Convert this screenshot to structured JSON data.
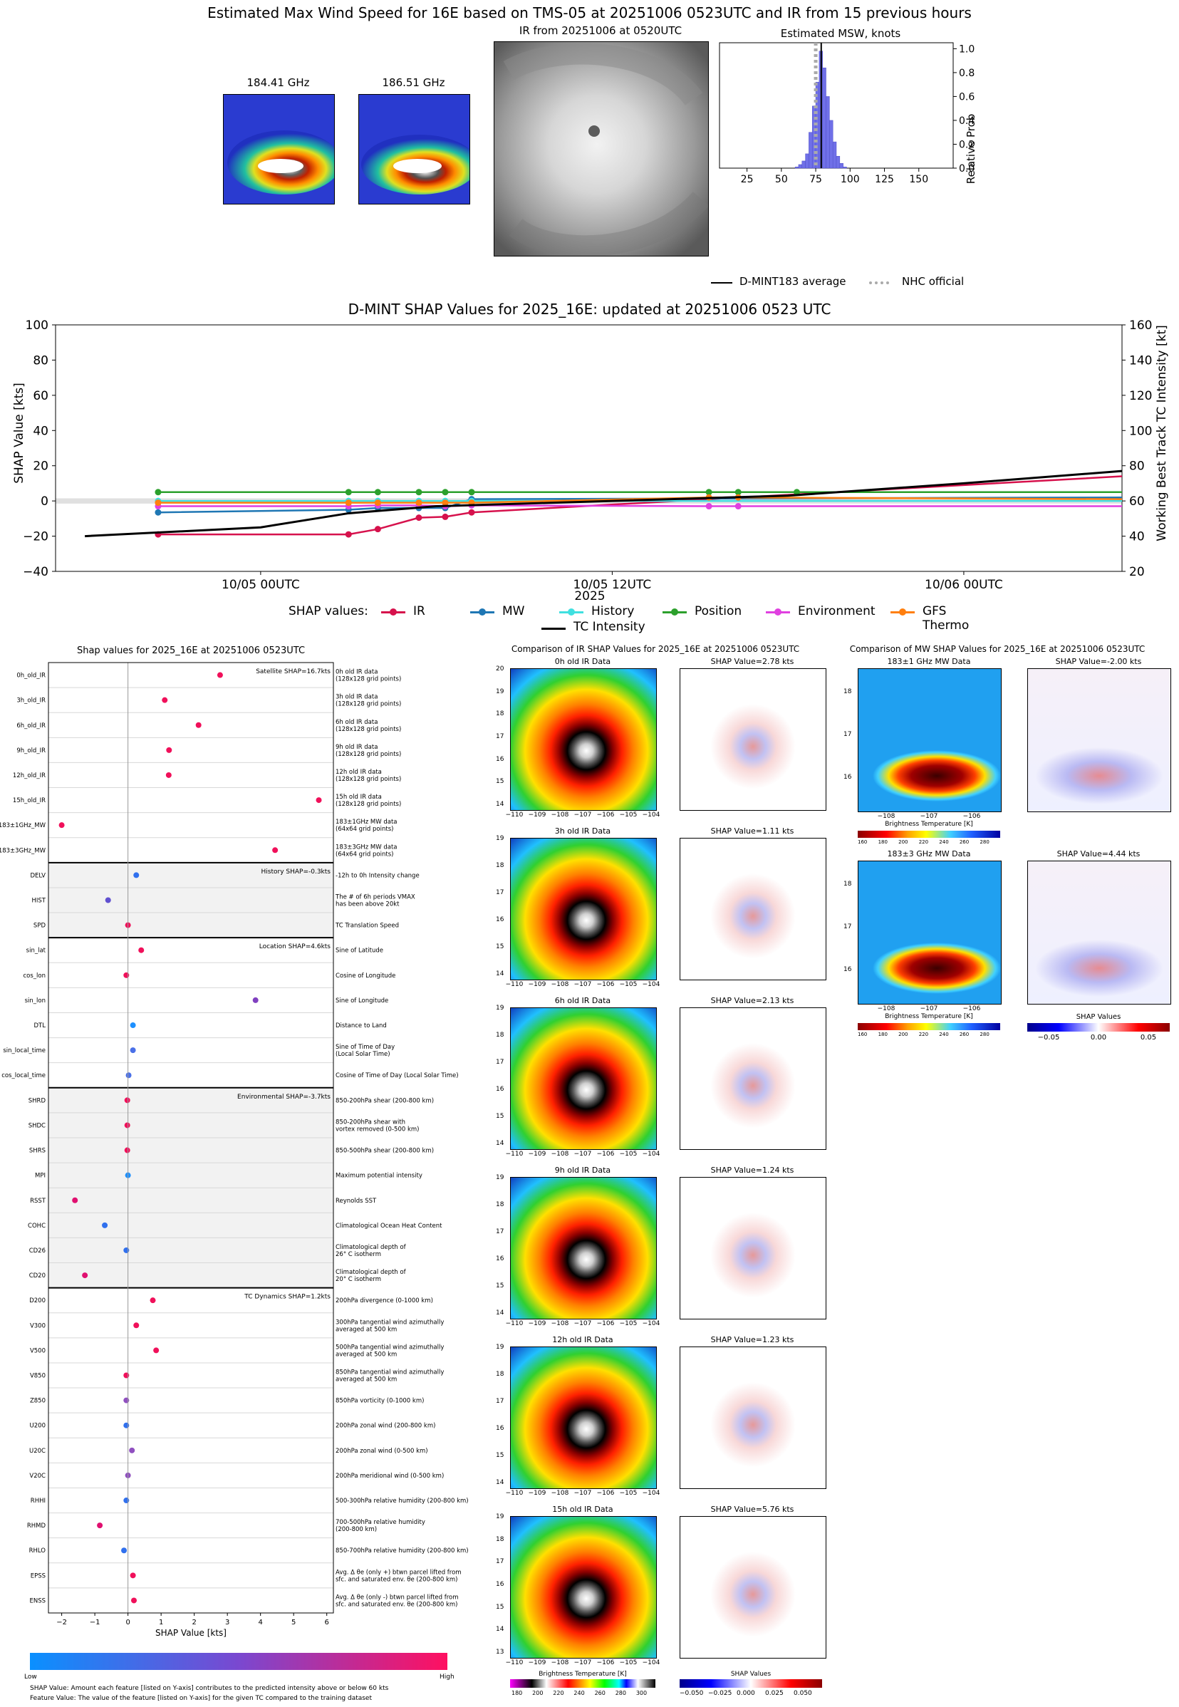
{
  "header": {
    "title": "Estimated Max Wind Speed for 16E based on TMS-05 at 20251006 0523UTC and IR from 15 previous hours",
    "mw1_label": "184.41 GHz",
    "mw2_label": "186.51 GHz",
    "ir_label": "IR from 20251006 at 0520UTC",
    "hist_title": "Estimated MSW, knots",
    "hist_ylabel": "Relative Prob",
    "hist_xticks": [
      "25",
      "50",
      "75",
      "100",
      "125",
      "150"
    ],
    "hist_yticks": [
      "0.0",
      "0.2",
      "0.4",
      "0.6",
      "0.8",
      "1.0"
    ],
    "legend_avg": "D-MINT183 average",
    "legend_nhc": "NHC official"
  },
  "timeline": {
    "title": "D-MINT SHAP Values for 2025_16E: updated at 20251006 0523 UTC",
    "ylabel_left": "SHAP Value [kts]",
    "ylabel_right": "Working Best Track TC Intensity [kt]",
    "xlabel": "2025",
    "legend_title": "SHAP values:",
    "tc_label": "TC Intensity"
  },
  "shap_panel": {
    "title": "Shap values for 2025_16E at 20251006 0523UTC",
    "xlabel": "SHAP Value [kts]",
    "cb_low": "Low",
    "cb_high": "High",
    "footnote1": "SHAP Value: Amount each feature [listed on Y-axis] contributes to the predicted intensity above or below 60 kts",
    "footnote2": "Feature Value: The value of the feature [listed on Y-axis] for the given TC compared to the training dataset",
    "xticks": [
      "−2",
      "−1",
      "0",
      "1",
      "2",
      "3",
      "4",
      "5",
      "6"
    ]
  },
  "ir_comparison": {
    "title": "Comparison of IR SHAP Values for 2025_16E at 20251006 0523UTC",
    "panels": [
      {
        "data_title": "0h old IR Data",
        "shap_title": "SHAP Value=2.78 kts"
      },
      {
        "data_title": "3h old IR Data",
        "shap_title": "SHAP Value=1.11 kts"
      },
      {
        "data_title": "6h old IR Data",
        "shap_title": "SHAP Value=2.13 kts"
      },
      {
        "data_title": "9h old IR Data",
        "shap_title": "SHAP Value=1.24 kts"
      },
      {
        "data_title": "12h old IR Data",
        "shap_title": "SHAP Value=1.23 kts"
      },
      {
        "data_title": "15h old IR Data",
        "shap_title": "SHAP Value=5.76 kts"
      }
    ],
    "xticks": [
      "−110",
      "−109",
      "−108",
      "−107",
      "−106",
      "−105",
      "−104"
    ],
    "cb_label": "Brightness Temperature [K]",
    "cb_ticks": [
      "180",
      "200",
      "220",
      "240",
      "260",
      "280",
      "300"
    ],
    "shap_cb_label": "SHAP Values",
    "shap_cb_ticks": [
      "−0.050",
      "−0.025",
      "0.000",
      "0.025",
      "0.050"
    ]
  },
  "mw_comparison": {
    "title": "Comparison of MW SHAP Values for 2025_16E at 20251006 0523UTC",
    "panels": [
      {
        "data_title": "183±1 GHz MW Data",
        "shap_title": "SHAP Value=-2.00 kts"
      },
      {
        "data_title": "183±3 GHz MW Data",
        "shap_title": "SHAP Value=4.44 kts"
      }
    ],
    "xticks": [
      "−108",
      "−107",
      "−106"
    ],
    "yticks": [
      "18",
      "17",
      "16"
    ],
    "cb_label": "Brightness Temperature [K]",
    "cb_ticks": [
      "160",
      "180",
      "200",
      "220",
      "240",
      "260",
      "280"
    ],
    "shap_cb_label": "SHAP Values",
    "shap_cb_ticks": [
      "−0.05",
      "0.00",
      "0.05"
    ]
  },
  "chart_data": [
    {
      "type": "bar",
      "title": "Estimated MSW, knots",
      "ylabel": "Relative Prob",
      "xlim": [
        5,
        175
      ],
      "ylim": [
        0,
        1.05
      ],
      "bin_width": 2.5,
      "bins": [
        60,
        62.5,
        65,
        67.5,
        70,
        72.5,
        75,
        77.5,
        80,
        82.5,
        85,
        87.5,
        90,
        92.5,
        95
      ],
      "values": [
        0.01,
        0.03,
        0.06,
        0.12,
        0.3,
        0.52,
        0.72,
        0.98,
        0.84,
        0.6,
        0.4,
        0.22,
        0.1,
        0.04,
        0.01
      ],
      "avg": 79,
      "nhc": 75,
      "legend": [
        "D-MINT183 average",
        "NHC official"
      ]
    },
    {
      "type": "line",
      "title": "D-MINT SHAP Values for 2025_16E: updated at 20251006 0523 UTC",
      "xlabel": "2025",
      "ylabel": "SHAP Value [kts]",
      "y2label": "Working Best Track TC Intensity [kt]",
      "xticks": [
        {
          "hours": 0,
          "label": "10/05 00UTC"
        },
        {
          "hours": 12,
          "label": "10/05 12UTC"
        },
        {
          "hours": 24,
          "label": "10/06 00UTC"
        }
      ],
      "xlim_hours": [
        -7,
        29.4
      ],
      "ylim": [
        -40,
        100
      ],
      "y2lim": [
        20,
        160
      ],
      "series": [
        {
          "name": "IR",
          "color": "#d6114c",
          "points": [
            [
              -3.5,
              -19
            ],
            [
              3,
              -19
            ],
            [
              4,
              -16
            ],
            [
              5.4,
              -9.5
            ],
            [
              6.3,
              -9
            ],
            [
              7.2,
              -6.5
            ],
            [
              29.4,
              14
            ]
          ]
        },
        {
          "name": "MW",
          "color": "#1f77b4",
          "points": [
            [
              -3.5,
              -6.5
            ],
            [
              3,
              -5
            ],
            [
              4,
              -4
            ],
            [
              5.4,
              -4
            ],
            [
              6.3,
              -4
            ],
            [
              7.2,
              1
            ],
            [
              29.4,
              2
            ]
          ]
        },
        {
          "name": "History",
          "color": "#40e0e0",
          "points": [
            [
              -3.5,
              0
            ],
            [
              3,
              0
            ],
            [
              4,
              0
            ],
            [
              5.4,
              0
            ],
            [
              6.3,
              0
            ],
            [
              7.2,
              0
            ],
            [
              29.4,
              0
            ]
          ]
        },
        {
          "name": "Position",
          "color": "#2ca02c",
          "points": [
            [
              -3.5,
              5
            ],
            [
              3,
              5
            ],
            [
              4,
              5
            ],
            [
              5.4,
              5
            ],
            [
              6.3,
              5
            ],
            [
              7.2,
              5
            ],
            [
              15.3,
              5
            ],
            [
              16.3,
              5
            ],
            [
              18.3,
              5
            ],
            [
              29.4,
              5
            ]
          ]
        },
        {
          "name": "Environment",
          "color": "#e040e0",
          "points": [
            [
              -3.5,
              -3
            ],
            [
              3,
              -3
            ],
            [
              4,
              -2.5
            ],
            [
              5.4,
              -2.5
            ],
            [
              6.3,
              -3
            ],
            [
              7.2,
              -2.5
            ],
            [
              15.3,
              -3
            ],
            [
              16.3,
              -3
            ],
            [
              29.4,
              -3
            ]
          ]
        },
        {
          "name": "GFS Thermo",
          "color": "#ff7f0e",
          "points": [
            [
              -3.5,
              -1
            ],
            [
              3,
              -1
            ],
            [
              4,
              -1
            ],
            [
              5.4,
              -1
            ],
            [
              6.3,
              -1
            ],
            [
              7.2,
              -1
            ],
            [
              15.3,
              2
            ],
            [
              16.3,
              2
            ],
            [
              29.4,
              1
            ]
          ]
        }
      ],
      "tc_intensity": {
        "name": "TC Intensity",
        "color": "#000000",
        "points": [
          [
            -6,
            40
          ],
          [
            0,
            45
          ],
          [
            3,
            53
          ],
          [
            6,
            57
          ],
          [
            12,
            60
          ],
          [
            18,
            63
          ],
          [
            24,
            70
          ],
          [
            29.4,
            77
          ]
        ]
      }
    },
    {
      "type": "scatter",
      "title": "Shap values for 2025_16E at 20251006 0523UTC",
      "xlabel": "SHAP Value [kts]",
      "xlim": [
        -2.4,
        6.2
      ],
      "groups": [
        {
          "label": "Satellite SHAP=16.7kts",
          "shaded": false,
          "features": [
            {
              "name": "0h_old_IR",
              "desc": [
                "0h old IR data",
                "(128x128 grid points)"
              ],
              "shap": 2.78,
              "color": "#f0105a"
            },
            {
              "name": "3h_old_IR",
              "desc": [
                "3h old IR data",
                "(128x128 grid points)"
              ],
              "shap": 1.11,
              "color": "#f0105a"
            },
            {
              "name": "6h_old_IR",
              "desc": [
                "6h old IR data",
                "(128x128 grid points)"
              ],
              "shap": 2.13,
              "color": "#f0105a"
            },
            {
              "name": "9h_old_IR",
              "desc": [
                "9h old IR data",
                "(128x128 grid points)"
              ],
              "shap": 1.24,
              "color": "#f0105a"
            },
            {
              "name": "12h_old_IR",
              "desc": [
                "12h old IR data",
                "(128x128 grid points)"
              ],
              "shap": 1.23,
              "color": "#f0105a"
            },
            {
              "name": "15h_old_IR",
              "desc": [
                "15h old IR data",
                "(128x128 grid points)"
              ],
              "shap": 5.76,
              "color": "#f0105a"
            },
            {
              "name": "183±1GHz_MW",
              "desc": [
                "183±1GHz MW data",
                "(64x64 grid points)"
              ],
              "shap": -2.0,
              "color": "#f0105a"
            },
            {
              "name": "183±3GHz_MW",
              "desc": [
                "183±3GHz MW data",
                "(64x64 grid points)"
              ],
              "shap": 4.44,
              "color": "#f0105a"
            }
          ]
        },
        {
          "label": "History SHAP=-0.3kts",
          "shaded": true,
          "features": [
            {
              "name": "DELV",
              "desc": [
                "-12h to 0h Intensity change"
              ],
              "shap": 0.25,
              "color": "#3070ee"
            },
            {
              "name": "HIST",
              "desc": [
                "The # of 6h periods VMAX",
                "has been above 20kt"
              ],
              "shap": -0.6,
              "color": "#6050d0"
            },
            {
              "name": "SPD",
              "desc": [
                "TC Translation Speed"
              ],
              "shap": 0.0,
              "color": "#f0105a"
            }
          ]
        },
        {
          "label": "Location SHAP=4.6kts",
          "shaded": false,
          "features": [
            {
              "name": "sin_lat",
              "desc": [
                "Sine of Latitude"
              ],
              "shap": 0.4,
              "color": "#f0105a"
            },
            {
              "name": "cos_lon",
              "desc": [
                "Cosine of Longitude"
              ],
              "shap": -0.05,
              "color": "#f0105a"
            },
            {
              "name": "sin_lon",
              "desc": [
                "Sine of Longitude"
              ],
              "shap": 3.85,
              "color": "#8040c0"
            },
            {
              "name": "DTL",
              "desc": [
                "Distance to Land"
              ],
              "shap": 0.15,
              "color": "#1e90ff"
            },
            {
              "name": "sin_local_time",
              "desc": [
                "Sine of Time of Day",
                "(Local Solar Time)"
              ],
              "shap": 0.15,
              "color": "#4a70e8"
            },
            {
              "name": "cos_local_time",
              "desc": [
                "Cosine of Time of Day (Local Solar Time)"
              ],
              "shap": 0.02,
              "color": "#4a70e8"
            }
          ]
        },
        {
          "label": "Environmental SHAP=-3.7kts",
          "shaded": true,
          "features": [
            {
              "name": "SHRD",
              "desc": [
                "850-200hPa shear (200-800 km)"
              ],
              "shap": -0.02,
              "color": "#f0105a"
            },
            {
              "name": "SHDC",
              "desc": [
                "850-200hPa shear with",
                "vortex removed (0-500 km)"
              ],
              "shap": -0.02,
              "color": "#f0105a"
            },
            {
              "name": "SHRS",
              "desc": [
                "850-500hPa shear (200-800 km)"
              ],
              "shap": -0.02,
              "color": "#f0105a"
            },
            {
              "name": "MPI",
              "desc": [
                "Maximum potential intensity"
              ],
              "shap": 0.0,
              "color": "#1e90ff"
            },
            {
              "name": "RSST",
              "desc": [
                "Reynolds SST"
              ],
              "shap": -1.6,
              "color": "#e01070"
            },
            {
              "name": "COHC",
              "desc": [
                "Climatological Ocean Heat Content"
              ],
              "shap": -0.7,
              "color": "#3070ee"
            },
            {
              "name": "CD26",
              "desc": [
                "Climatological depth of",
                "26° C isotherm"
              ],
              "shap": -0.05,
              "color": "#3070ee"
            },
            {
              "name": "CD20",
              "desc": [
                "Climatological depth of",
                "20° C isotherm"
              ],
              "shap": -1.3,
              "color": "#e01070"
            }
          ]
        },
        {
          "label": "TC Dynamics SHAP=1.2kts",
          "shaded": false,
          "features": [
            {
              "name": "D200",
              "desc": [
                "200hPa divergence (0-1000 km)"
              ],
              "shap": 0.75,
              "color": "#f0105a"
            },
            {
              "name": "V300",
              "desc": [
                "300hPa tangential wind azimuthally",
                "averaged at 500 km"
              ],
              "shap": 0.25,
              "color": "#f0105a"
            },
            {
              "name": "V500",
              "desc": [
                "500hPa tangential wind azimuthally",
                "averaged at 500 km"
              ],
              "shap": 0.85,
              "color": "#f0105a"
            },
            {
              "name": "V850",
              "desc": [
                "850hPa tangential wind azimuthally",
                "averaged at 500 km"
              ],
              "shap": -0.05,
              "color": "#f0105a"
            },
            {
              "name": "Z850",
              "desc": [
                "850hPa vorticity (0-1000 km)"
              ],
              "shap": -0.05,
              "color": "#9050c0"
            },
            {
              "name": "U200",
              "desc": [
                "200hPa zonal wind (200-800 km)"
              ],
              "shap": -0.05,
              "color": "#3070ee"
            },
            {
              "name": "U20C",
              "desc": [
                "200hPa zonal wind (0-500 km)"
              ],
              "shap": 0.12,
              "color": "#9050c0"
            },
            {
              "name": "V20C",
              "desc": [
                "200hPa meridional wind (0-500 km)"
              ],
              "shap": 0.0,
              "color": "#9050c0"
            },
            {
              "name": "RHHI",
              "desc": [
                "500-300hPa relative humidity (200-800 km)"
              ],
              "shap": -0.05,
              "color": "#3070ee"
            },
            {
              "name": "RHMD",
              "desc": [
                "700-500hPa relative humidity",
                "(200-800 km)"
              ],
              "shap": -0.85,
              "color": "#e01070"
            },
            {
              "name": "RHLO",
              "desc": [
                "850-700hPa relative humidity (200-800 km)"
              ],
              "shap": -0.12,
              "color": "#3070ee"
            },
            {
              "name": "EPSS",
              "desc": [
                "Avg. Δ θe (only +) btwn parcel lifted from",
                "sfc. and saturated env. θe (200-800 km)"
              ],
              "shap": 0.15,
              "color": "#f0105a"
            },
            {
              "name": "ENSS",
              "desc": [
                "Avg. Δ θe (only -) btwn parcel lifted from",
                "sfc. and saturated env. θe (200-800 km)"
              ],
              "shap": 0.18,
              "color": "#f0105a"
            }
          ]
        }
      ]
    }
  ]
}
